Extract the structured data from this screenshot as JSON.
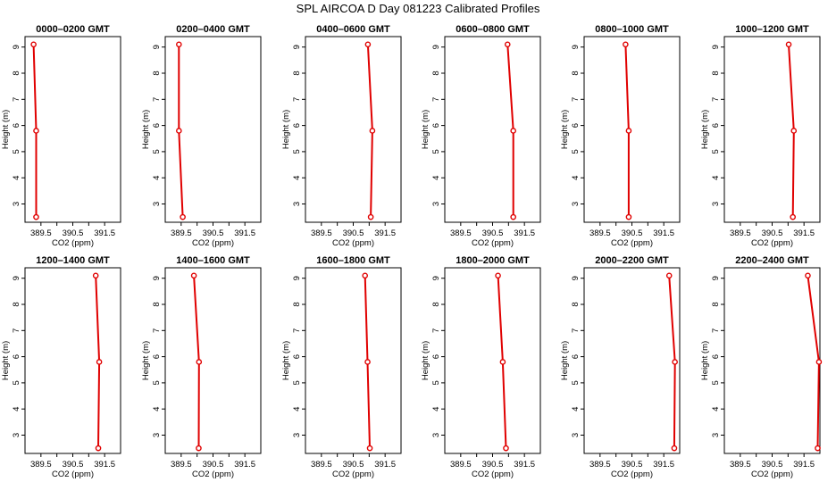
{
  "title": "SPL AIRCOA D  Day 081223  Calibrated Profiles",
  "colors": {
    "series": "#e00000",
    "axis": "#000000",
    "background": "#ffffff"
  },
  "chart_data": [
    {
      "type": "line",
      "title": "0000–0200 GMT",
      "xlabel": "CO2 (ppm)",
      "ylabel": "Height (m)",
      "xlim": [
        389.0,
        392.0
      ],
      "ylim": [
        2.3,
        9.4
      ],
      "xticks": [
        389.5,
        390.0,
        390.5,
        391.0,
        391.5
      ],
      "xtick_labels": [
        "389.5",
        "390.5",
        "391.5"
      ],
      "yticks": [
        3,
        4,
        5,
        6,
        7,
        8,
        9
      ],
      "series": [
        {
          "x": [
            389.27,
            389.35,
            389.35
          ],
          "y": [
            9.1,
            5.8,
            2.5
          ]
        }
      ]
    },
    {
      "type": "line",
      "title": "0200–0400 GMT",
      "xlabel": "CO2 (ppm)",
      "ylabel": "Height (m)",
      "xlim": [
        389.0,
        392.0
      ],
      "ylim": [
        2.3,
        9.4
      ],
      "xticks": [
        389.5,
        390.0,
        390.5,
        391.0,
        391.5
      ],
      "xtick_labels": [
        "389.5",
        "390.5",
        "391.5"
      ],
      "yticks": [
        3,
        4,
        5,
        6,
        7,
        8,
        9
      ],
      "series": [
        {
          "x": [
            389.43,
            389.43,
            389.55
          ],
          "y": [
            9.1,
            5.8,
            2.5
          ]
        }
      ]
    },
    {
      "type": "line",
      "title": "0400–0600 GMT",
      "xlabel": "CO2 (ppm)",
      "ylabel": "Height (m)",
      "xlim": [
        389.0,
        392.0
      ],
      "ylim": [
        2.3,
        9.4
      ],
      "xticks": [
        389.5,
        390.0,
        390.5,
        391.0,
        391.5
      ],
      "xtick_labels": [
        "389.5",
        "390.5",
        "391.5"
      ],
      "yticks": [
        3,
        4,
        5,
        6,
        7,
        8,
        9
      ],
      "series": [
        {
          "x": [
            390.96,
            391.1,
            391.05
          ],
          "y": [
            9.1,
            5.8,
            2.5
          ]
        }
      ]
    },
    {
      "type": "line",
      "title": "0600–0800 GMT",
      "xlabel": "CO2 (ppm)",
      "ylabel": "Height (m)",
      "xlim": [
        389.0,
        392.0
      ],
      "ylim": [
        2.3,
        9.4
      ],
      "xticks": [
        389.5,
        390.0,
        390.5,
        391.0,
        391.5
      ],
      "xtick_labels": [
        "389.5",
        "390.5",
        "391.5"
      ],
      "yticks": [
        3,
        4,
        5,
        6,
        7,
        8,
        9
      ],
      "series": [
        {
          "x": [
            390.97,
            391.15,
            391.15
          ],
          "y": [
            9.1,
            5.8,
            2.5
          ]
        }
      ]
    },
    {
      "type": "line",
      "title": "0800–1000 GMT",
      "xlabel": "CO2 (ppm)",
      "ylabel": "Height (m)",
      "xlim": [
        389.0,
        392.0
      ],
      "ylim": [
        2.3,
        9.4
      ],
      "xticks": [
        389.5,
        390.0,
        390.5,
        391.0,
        391.5
      ],
      "xtick_labels": [
        "389.5",
        "390.5",
        "391.5"
      ],
      "yticks": [
        3,
        4,
        5,
        6,
        7,
        8,
        9
      ],
      "series": [
        {
          "x": [
            390.3,
            390.4,
            390.4
          ],
          "y": [
            9.1,
            5.8,
            2.5
          ]
        }
      ]
    },
    {
      "type": "line",
      "title": "1000–1200 GMT",
      "xlabel": "CO2 (ppm)",
      "ylabel": "Height (m)",
      "xlim": [
        389.0,
        392.0
      ],
      "ylim": [
        2.3,
        9.4
      ],
      "xticks": [
        389.5,
        390.0,
        390.5,
        391.0,
        391.5
      ],
      "xtick_labels": [
        "389.5",
        "390.5",
        "391.5"
      ],
      "yticks": [
        3,
        4,
        5,
        6,
        7,
        8,
        9
      ],
      "series": [
        {
          "x": [
            391.02,
            391.18,
            391.15
          ],
          "y": [
            9.1,
            5.8,
            2.5
          ]
        }
      ]
    },
    {
      "type": "line",
      "title": "1200–1400 GMT",
      "xlabel": "CO2 (ppm)",
      "ylabel": "Height (m)",
      "xlim": [
        389.0,
        392.0
      ],
      "ylim": [
        2.3,
        9.4
      ],
      "xticks": [
        389.5,
        390.0,
        390.5,
        391.0,
        391.5
      ],
      "xtick_labels": [
        "389.5",
        "390.5",
        "391.5"
      ],
      "yticks": [
        3,
        4,
        5,
        6,
        7,
        8,
        9
      ],
      "series": [
        {
          "x": [
            391.22,
            391.33,
            391.3
          ],
          "y": [
            9.1,
            5.8,
            2.5
          ]
        }
      ]
    },
    {
      "type": "line",
      "title": "1400–1600 GMT",
      "xlabel": "CO2 (ppm)",
      "ylabel": "Height (m)",
      "xlim": [
        389.0,
        392.0
      ],
      "ylim": [
        2.3,
        9.4
      ],
      "xticks": [
        389.5,
        390.0,
        390.5,
        391.0,
        391.5
      ],
      "xtick_labels": [
        "389.5",
        "390.5",
        "391.5"
      ],
      "yticks": [
        3,
        4,
        5,
        6,
        7,
        8,
        9
      ],
      "series": [
        {
          "x": [
            389.9,
            390.06,
            390.05
          ],
          "y": [
            9.1,
            5.8,
            2.5
          ]
        }
      ]
    },
    {
      "type": "line",
      "title": "1600–1800 GMT",
      "xlabel": "CO2 (ppm)",
      "ylabel": "Height (m)",
      "xlim": [
        389.0,
        392.0
      ],
      "ylim": [
        2.3,
        9.4
      ],
      "xticks": [
        389.5,
        390.0,
        390.5,
        391.0,
        391.5
      ],
      "xtick_labels": [
        "389.5",
        "390.5",
        "391.5"
      ],
      "yticks": [
        3,
        4,
        5,
        6,
        7,
        8,
        9
      ],
      "series": [
        {
          "x": [
            390.87,
            390.95,
            391.02
          ],
          "y": [
            9.1,
            5.8,
            2.5
          ]
        }
      ]
    },
    {
      "type": "line",
      "title": "1800–2000 GMT",
      "xlabel": "CO2 (ppm)",
      "ylabel": "Height (m)",
      "xlim": [
        389.0,
        392.0
      ],
      "ylim": [
        2.3,
        9.4
      ],
      "xticks": [
        389.5,
        390.0,
        390.5,
        391.0,
        391.5
      ],
      "xtick_labels": [
        "389.5",
        "390.5",
        "391.5"
      ],
      "yticks": [
        3,
        4,
        5,
        6,
        7,
        8,
        9
      ],
      "series": [
        {
          "x": [
            390.67,
            390.82,
            390.92
          ],
          "y": [
            9.1,
            5.8,
            2.5
          ]
        }
      ]
    },
    {
      "type": "line",
      "title": "2000–2200 GMT",
      "xlabel": "CO2 (ppm)",
      "ylabel": "Height (m)",
      "xlim": [
        389.0,
        392.0
      ],
      "ylim": [
        2.3,
        9.4
      ],
      "xticks": [
        389.5,
        390.0,
        390.5,
        391.0,
        391.5
      ],
      "xtick_labels": [
        "389.5",
        "390.5",
        "391.5"
      ],
      "yticks": [
        3,
        4,
        5,
        6,
        7,
        8,
        9
      ],
      "series": [
        {
          "x": [
            391.67,
            391.85,
            391.83
          ],
          "y": [
            9.1,
            5.8,
            2.5
          ]
        }
      ]
    },
    {
      "type": "line",
      "title": "2200–2400 GMT",
      "xlabel": "CO2 (ppm)",
      "ylabel": "Height (m)",
      "xlim": [
        389.0,
        392.0
      ],
      "ylim": [
        2.3,
        9.4
      ],
      "xticks": [
        389.5,
        390.0,
        390.5,
        391.0,
        391.5
      ],
      "xtick_labels": [
        "389.5",
        "390.5",
        "391.5"
      ],
      "yticks": [
        3,
        4,
        5,
        6,
        7,
        8,
        9
      ],
      "series": [
        {
          "x": [
            391.62,
            391.97,
            391.93
          ],
          "y": [
            9.1,
            5.8,
            2.5
          ]
        }
      ]
    }
  ]
}
